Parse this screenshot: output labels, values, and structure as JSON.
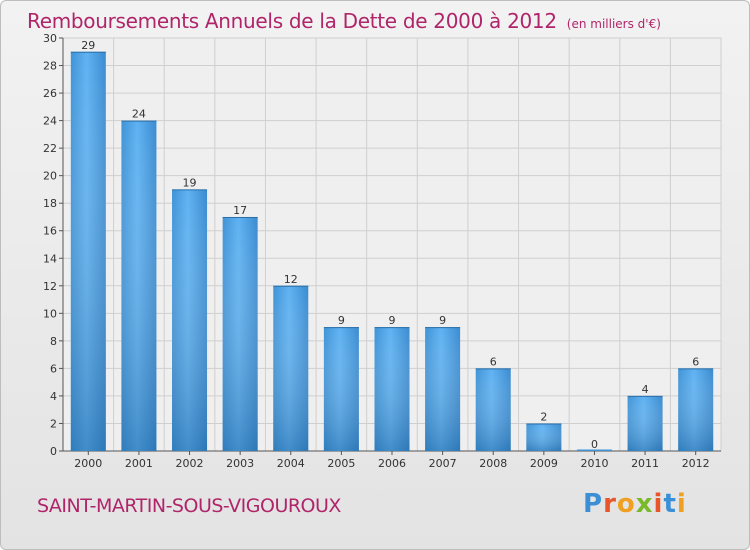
{
  "chart_data": {
    "type": "bar",
    "title": "Remboursements Annuels de la Dette de 2000 à 2012",
    "subtitle": "(en milliers d'€)",
    "categories": [
      "2000",
      "2001",
      "2002",
      "2003",
      "2004",
      "2005",
      "2006",
      "2007",
      "2008",
      "2009",
      "2010",
      "2011",
      "2012"
    ],
    "values": [
      29,
      24,
      19,
      17,
      12,
      9,
      9,
      9,
      6,
      2,
      0,
      4,
      6
    ],
    "ylim": [
      0,
      30
    ],
    "yticks": [
      0,
      2,
      4,
      6,
      8,
      10,
      12,
      14,
      16,
      18,
      20,
      22,
      24,
      26,
      28,
      30
    ],
    "xlabel": "",
    "ylabel": "",
    "grid": true,
    "colors": {
      "bar_light": "#5aaef0",
      "bar_dark": "#2a7cbd",
      "grid": "#cfcfcf"
    }
  },
  "footer": {
    "commune": "SAINT-MARTIN-SOUS-VIGOUROUX",
    "logo": "Proxiti"
  }
}
